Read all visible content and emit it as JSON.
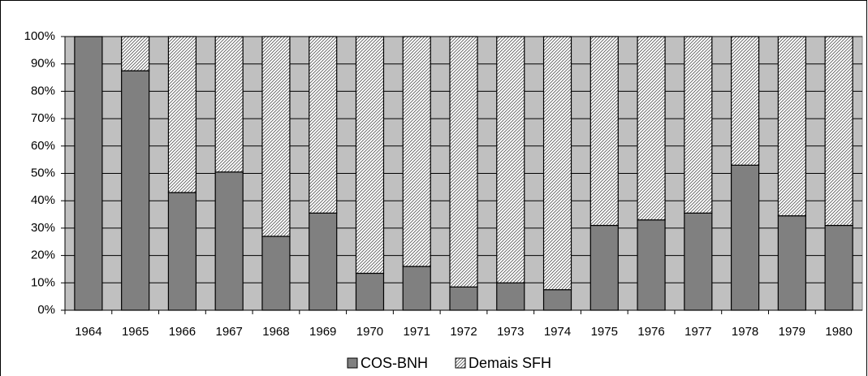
{
  "chart_data": {
    "type": "stacked_bar_100",
    "categories": [
      "1964",
      "1965",
      "1966",
      "1967",
      "1968",
      "1969",
      "1970",
      "1971",
      "1972",
      "1973",
      "1974",
      "1975",
      "1976",
      "1977",
      "1978",
      "1979",
      "1980"
    ],
    "series": [
      {
        "name": "COS-BNH",
        "color": "#808080",
        "values": [
          100,
          87.5,
          43,
          50.5,
          27,
          35.5,
          13.5,
          16,
          8.5,
          10,
          7.5,
          31,
          33,
          35.5,
          53,
          34.5,
          31
        ]
      },
      {
        "name": "Demais SFH",
        "color": "#ffffff",
        "pattern": "hatch",
        "values": [
          0,
          12.5,
          57,
          49.5,
          73,
          64.5,
          86.5,
          84,
          91.5,
          90,
          92.5,
          69,
          67,
          64.5,
          47,
          65.5,
          69
        ]
      }
    ],
    "ylim": [
      0,
      100
    ],
    "yticks": [
      {
        "value": 0,
        "label": "0%"
      },
      {
        "value": 10,
        "label": "10%"
      },
      {
        "value": 20,
        "label": "20%"
      },
      {
        "value": 30,
        "label": "30%"
      },
      {
        "value": 40,
        "label": "40%"
      },
      {
        "value": 50,
        "label": "50%"
      },
      {
        "value": 60,
        "label": "60%"
      },
      {
        "value": 70,
        "label": "70%"
      },
      {
        "value": 80,
        "label": "80%"
      },
      {
        "value": 90,
        "label": "90%"
      },
      {
        "value": 100,
        "label": "100%"
      }
    ],
    "grid": true,
    "legend": "bottom",
    "plot_background": "#c0c0c0"
  }
}
